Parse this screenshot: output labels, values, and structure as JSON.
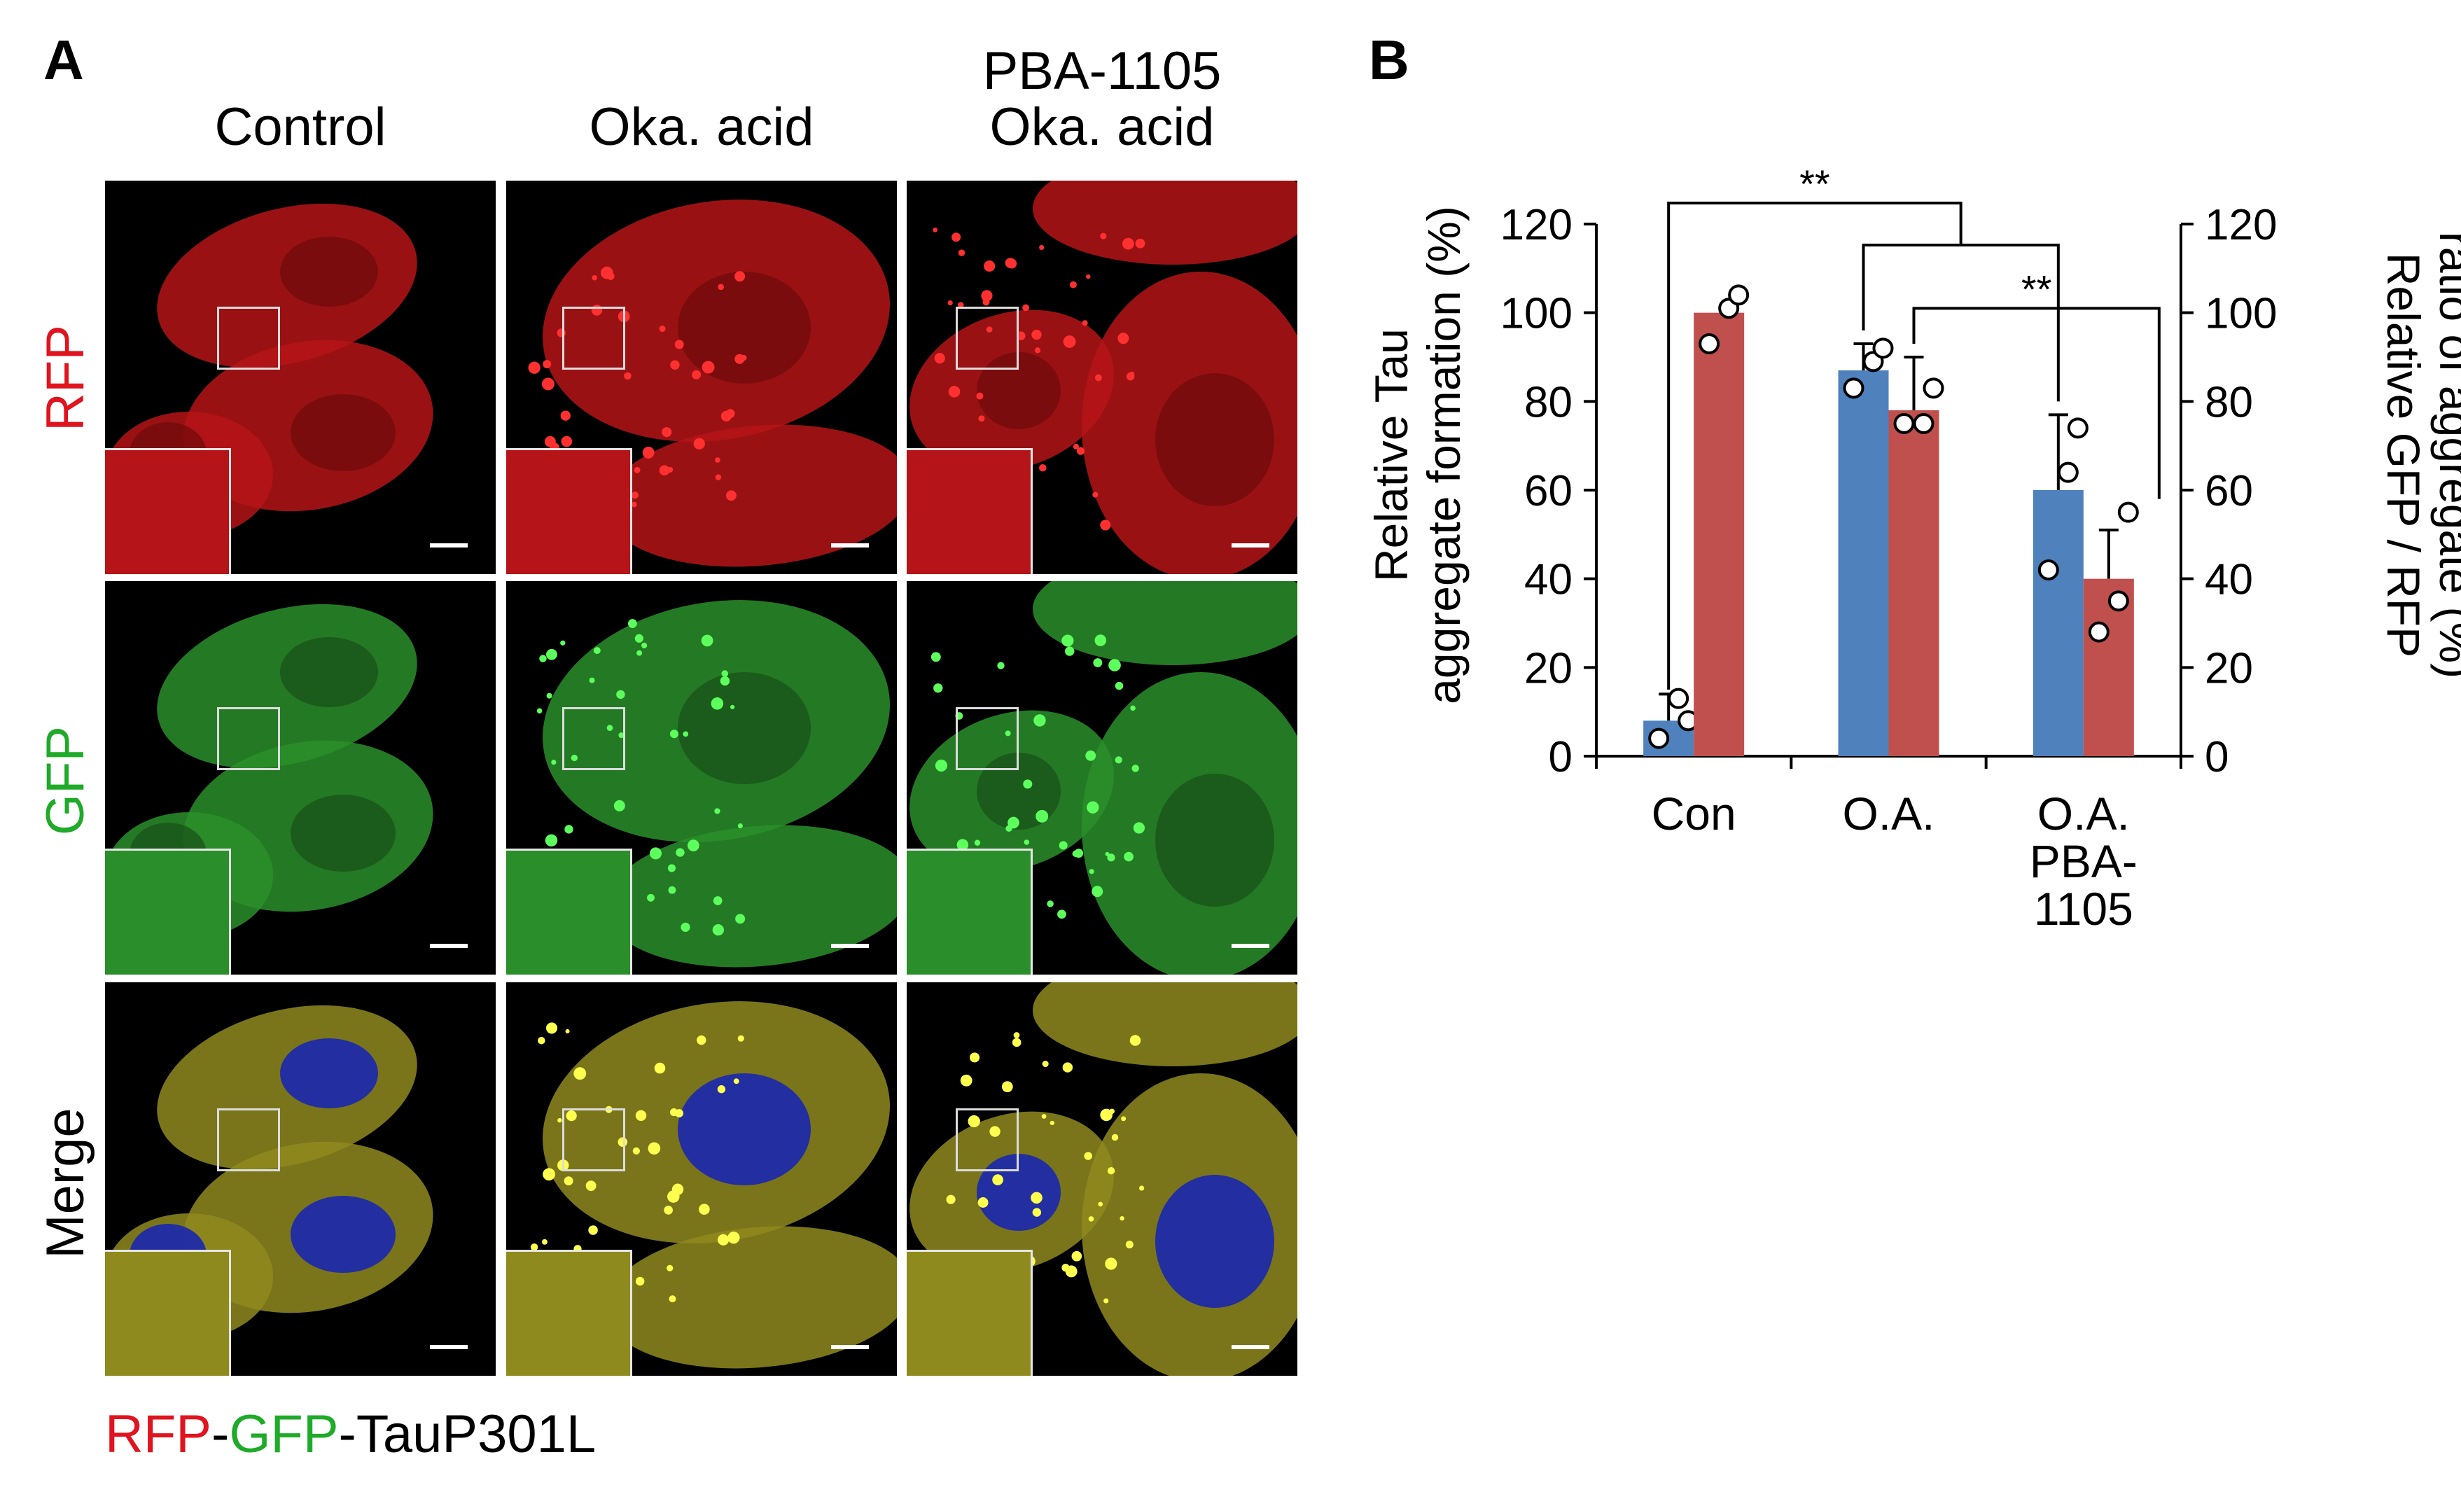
{
  "panel_a": {
    "letter": "A",
    "columns": [
      "Control",
      "Oka. acid",
      "PBA-1105\nOka. acid"
    ],
    "column_line1": [
      "",
      "",
      "PBA-1105"
    ],
    "column_line2": [
      "Control",
      "Oka. acid",
      "Oka. acid"
    ],
    "rows": [
      {
        "label": "RFP",
        "color": "#e0141e"
      },
      {
        "label": "GFP",
        "color": "#1faa2a"
      },
      {
        "label": "Merge",
        "color": "#000000"
      }
    ],
    "legend": {
      "rfp": "RFP",
      "dash1": "-",
      "gfp": "GFP",
      "rest": "-TauP301L",
      "rfp_color": "#e0141e",
      "gfp_color": "#1faa2a"
    }
  },
  "panel_b": {
    "letter": "B",
    "significance": [
      "**",
      "**"
    ]
  },
  "chart_data": {
    "type": "bar",
    "categories": [
      "Con",
      "O.A.",
      "O.A.\nPBA-\n1105"
    ],
    "category_lines": [
      [
        "Con"
      ],
      [
        "O.A."
      ],
      [
        "O.A.",
        "PBA-",
        "1105"
      ]
    ],
    "series": [
      {
        "axis": "left",
        "color": "#4f81bd",
        "values": [
          8,
          87,
          60
        ],
        "errors": [
          6,
          6,
          17
        ],
        "points": [
          [
            4,
            13,
            8
          ],
          [
            83,
            89,
            92
          ],
          [
            42,
            64,
            74
          ]
        ]
      },
      {
        "axis": "right",
        "color": "#c0504d",
        "values": [
          100,
          78,
          40
        ],
        "errors": [
          0,
          12,
          11
        ],
        "points": [
          [
            93,
            101,
            104
          ],
          [
            75,
            75,
            83
          ],
          [
            28,
            35,
            55
          ]
        ]
      }
    ],
    "ylabel_left": [
      "Relative Tau",
      "aggregate formation (%)"
    ],
    "ylabel_right": [
      "Relative GFP / RFP",
      "ratio of aggregate (%)"
    ],
    "ylim": [
      0,
      120
    ],
    "yticks": [
      0,
      20,
      40,
      60,
      80,
      100,
      120
    ],
    "grid": false
  }
}
